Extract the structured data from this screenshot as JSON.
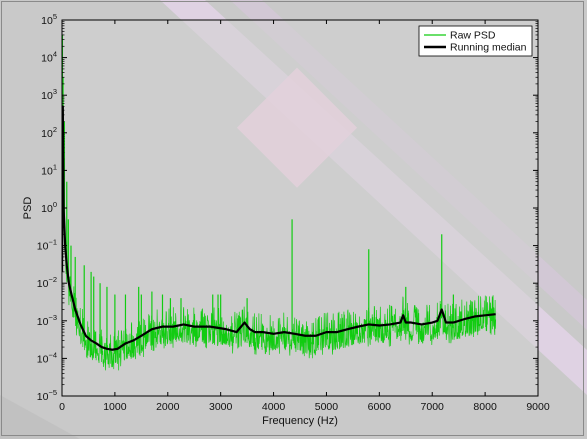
{
  "chart_data": {
    "type": "line",
    "title": "",
    "xlabel": "Frequency (Hz)",
    "ylabel": "PSD",
    "xlim": [
      0,
      9000
    ],
    "ylim": [
      1e-05,
      100000.0
    ],
    "yscale": "log",
    "grid": false,
    "legend_position": "top-right",
    "x_ticks": [
      {
        "value": 0,
        "label": "0"
      },
      {
        "value": 1000,
        "label": "1000"
      },
      {
        "value": 2000,
        "label": "2000"
      },
      {
        "value": 3000,
        "label": "3000"
      },
      {
        "value": 4000,
        "label": "4000"
      },
      {
        "value": 5000,
        "label": "5000"
      },
      {
        "value": 6000,
        "label": "6000"
      },
      {
        "value": 7000,
        "label": "7000"
      },
      {
        "value": 8000,
        "label": "8000"
      },
      {
        "value": 9000,
        "label": "9000"
      }
    ],
    "y_ticks": [
      {
        "value": 1e-05,
        "base": "10",
        "exp": "−5"
      },
      {
        "value": 0.0001,
        "base": "10",
        "exp": "−4"
      },
      {
        "value": 0.001,
        "base": "10",
        "exp": "−3"
      },
      {
        "value": 0.01,
        "base": "10",
        "exp": "−2"
      },
      {
        "value": 0.1,
        "base": "10",
        "exp": "−1"
      },
      {
        "value": 1.0,
        "base": "10",
        "exp": "0"
      },
      {
        "value": 10.0,
        "base": "10",
        "exp": "1"
      },
      {
        "value": 100.0,
        "base": "10",
        "exp": "2"
      },
      {
        "value": 1000.0,
        "base": "10",
        "exp": "3"
      },
      {
        "value": 10000.0,
        "base": "10",
        "exp": "4"
      },
      {
        "value": 100000.0,
        "base": "10",
        "exp": "5"
      }
    ],
    "series": [
      {
        "name": "Raw PSD",
        "color": "#11cc11",
        "style": "noisy band around median",
        "band_low_factor": 0.25,
        "band_high_factor": 3.5,
        "spikes": [
          {
            "x": 8,
            "y": 40000
          },
          {
            "x": 20,
            "y": 3000
          },
          {
            "x": 45,
            "y": 200
          },
          {
            "x": 90,
            "y": 5
          },
          {
            "x": 120,
            "y": 0.5
          },
          {
            "x": 170,
            "y": 0.1
          },
          {
            "x": 250,
            "y": 0.05
          },
          {
            "x": 420,
            "y": 0.03
          },
          {
            "x": 550,
            "y": 0.02
          },
          {
            "x": 600,
            "y": 0.015
          },
          {
            "x": 720,
            "y": 0.01
          },
          {
            "x": 850,
            "y": 0.008
          },
          {
            "x": 1000,
            "y": 0.005
          },
          {
            "x": 1200,
            "y": 0.005
          },
          {
            "x": 1450,
            "y": 0.008
          },
          {
            "x": 1500,
            "y": 0.005
          },
          {
            "x": 1700,
            "y": 0.006
          },
          {
            "x": 1900,
            "y": 0.005
          },
          {
            "x": 2050,
            "y": 0.004
          },
          {
            "x": 2250,
            "y": 0.004
          },
          {
            "x": 2850,
            "y": 0.005
          },
          {
            "x": 2950,
            "y": 0.005
          },
          {
            "x": 3000,
            "y": 0.005
          },
          {
            "x": 3500,
            "y": 0.004
          },
          {
            "x": 4350,
            "y": 0.5
          },
          {
            "x": 5800,
            "y": 0.08
          },
          {
            "x": 6500,
            "y": 0.008
          },
          {
            "x": 7180,
            "y": 0.2
          },
          {
            "x": 7400,
            "y": 0.005
          }
        ]
      },
      {
        "name": "Running median",
        "color": "#000000",
        "x": [
          0,
          15,
          30,
          60,
          90,
          130,
          180,
          250,
          350,
          450,
          550,
          650,
          750,
          850,
          950,
          1050,
          1200,
          1350,
          1500,
          1700,
          1900,
          2100,
          2300,
          2500,
          2800,
          3100,
          3300,
          3450,
          3550,
          3650,
          3800,
          4000,
          4200,
          4400,
          4600,
          4800,
          5000,
          5200,
          5400,
          5600,
          5800,
          6000,
          6200,
          6400,
          6450,
          6500,
          6600,
          6800,
          7000,
          7100,
          7180,
          7260,
          7400,
          7600,
          7800,
          8000,
          8200
        ],
        "y": [
          0.02,
          500,
          1.0,
          0.1,
          0.03,
          0.01,
          0.005,
          0.002,
          0.0008,
          0.0004,
          0.0003,
          0.00025,
          0.0002,
          0.00018,
          0.00017,
          0.00018,
          0.00025,
          0.0003,
          0.0004,
          0.0006,
          0.0007,
          0.0007,
          0.0008,
          0.0007,
          0.0007,
          0.0006,
          0.0005,
          0.0009,
          0.0006,
          0.0005,
          0.0005,
          0.00045,
          0.0005,
          0.00045,
          0.0004,
          0.0004,
          0.0005,
          0.0005,
          0.0006,
          0.0007,
          0.0008,
          0.00075,
          0.0008,
          0.0009,
          0.0014,
          0.0009,
          0.0009,
          0.0008,
          0.0009,
          0.001,
          0.002,
          0.0009,
          0.0009,
          0.0011,
          0.0013,
          0.0014,
          0.0015
        ]
      }
    ]
  }
}
